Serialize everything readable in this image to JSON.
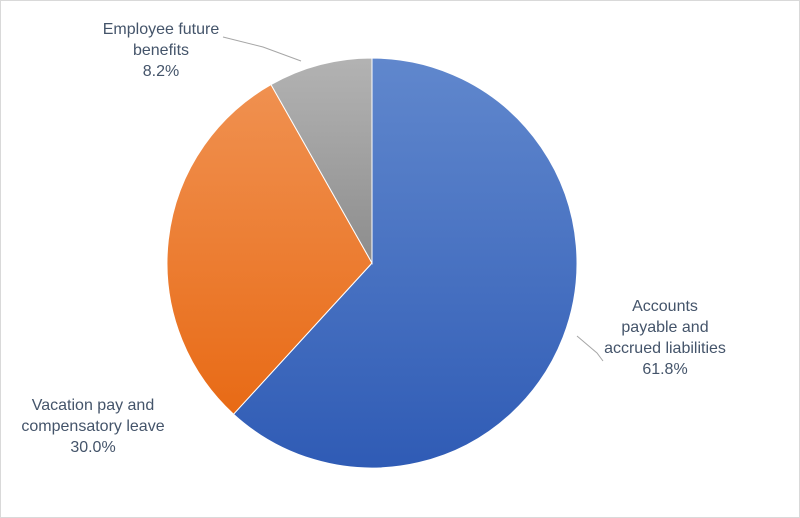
{
  "chart_data": {
    "type": "pie",
    "title": "",
    "slices": [
      {
        "label_lines": [
          "Accounts",
          "payable and",
          "accrued liabilities"
        ],
        "value": 61.8,
        "display": "61.8%",
        "color": "#4472c4",
        "color_dark": "#2f5bb5"
      },
      {
        "label_lines": [
          "Vacation pay and",
          "compensatory leave"
        ],
        "value": 30.0,
        "display": "30.0%",
        "color": "#ed7d31",
        "color_dark": "#e86a15"
      },
      {
        "label_lines": [
          "Employee future",
          "benefits"
        ],
        "value": 8.2,
        "display": "8.2%",
        "color": "#a5a5a5",
        "color_dark": "#8c8c8c"
      }
    ],
    "legend": "none",
    "start_angle_deg": 0,
    "direction": "clockwise",
    "label_color": "#44546a",
    "leader_color": "#a6a6a6"
  }
}
